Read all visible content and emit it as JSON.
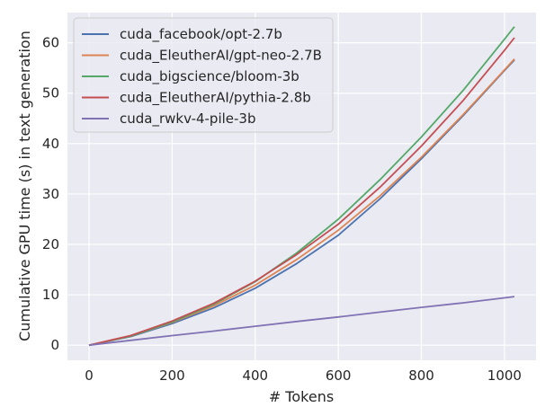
{
  "chart_data": {
    "type": "line",
    "xlabel": "# Tokens",
    "ylabel": "Cumulative GPU time (s) in text generation",
    "xlim": [
      -52,
      1076
    ],
    "ylim": [
      -3,
      66
    ],
    "xticks": [
      0,
      200,
      400,
      600,
      800,
      1000
    ],
    "yticks": [
      0,
      10,
      20,
      30,
      40,
      50,
      60
    ],
    "background": "#eaeaf2",
    "grid": true,
    "legend_position": "top-left",
    "series": [
      {
        "name": "cuda_facebook/opt-2.7b",
        "color": "#4c72b0",
        "points": [
          [
            0,
            0
          ],
          [
            100,
            1.7
          ],
          [
            200,
            4.3
          ],
          [
            300,
            7.4
          ],
          [
            400,
            11.3
          ],
          [
            500,
            16.2
          ],
          [
            600,
            21.8
          ],
          [
            700,
            29
          ],
          [
            800,
            37
          ],
          [
            900,
            45.5
          ],
          [
            1000,
            54.5
          ],
          [
            1024,
            56.6
          ]
        ]
      },
      {
        "name": "cuda_EleutherAI/gpt-neo-2.7B",
        "color": "#dd8452",
        "points": [
          [
            0,
            0
          ],
          [
            100,
            1.8
          ],
          [
            200,
            4.5
          ],
          [
            300,
            7.8
          ],
          [
            400,
            11.9
          ],
          [
            500,
            17
          ],
          [
            600,
            22.8
          ],
          [
            700,
            29.6
          ],
          [
            800,
            37.3
          ],
          [
            900,
            45.7
          ],
          [
            1000,
            54.6
          ],
          [
            1024,
            56.8
          ]
        ]
      },
      {
        "name": "cuda_bigscience/bloom-3b",
        "color": "#55a868",
        "points": [
          [
            0,
            0
          ],
          [
            100,
            1.8
          ],
          [
            200,
            4.6
          ],
          [
            300,
            8.1
          ],
          [
            400,
            12.6
          ],
          [
            500,
            18.3
          ],
          [
            600,
            25
          ],
          [
            700,
            32.8
          ],
          [
            800,
            41.3
          ],
          [
            900,
            50.5
          ],
          [
            1000,
            60.7
          ],
          [
            1024,
            63.2
          ]
        ]
      },
      {
        "name": "cuda_EleutherAI/pythia-2.8b",
        "color": "#c44e52",
        "points": [
          [
            0,
            0
          ],
          [
            100,
            1.9
          ],
          [
            200,
            4.8
          ],
          [
            300,
            8.3
          ],
          [
            400,
            12.7
          ],
          [
            500,
            18
          ],
          [
            600,
            24
          ],
          [
            700,
            31.3
          ],
          [
            800,
            39.5
          ],
          [
            900,
            48.5
          ],
          [
            1000,
            58.5
          ],
          [
            1024,
            61
          ]
        ]
      },
      {
        "name": "cuda_rwkv-4-pile-3b",
        "color": "#8172b3",
        "points": [
          [
            0,
            0
          ],
          [
            100,
            0.95
          ],
          [
            200,
            1.9
          ],
          [
            300,
            2.8
          ],
          [
            400,
            3.75
          ],
          [
            500,
            4.7
          ],
          [
            600,
            5.6
          ],
          [
            700,
            6.55
          ],
          [
            800,
            7.5
          ],
          [
            900,
            8.4
          ],
          [
            1000,
            9.4
          ],
          [
            1024,
            9.65
          ]
        ]
      }
    ]
  }
}
